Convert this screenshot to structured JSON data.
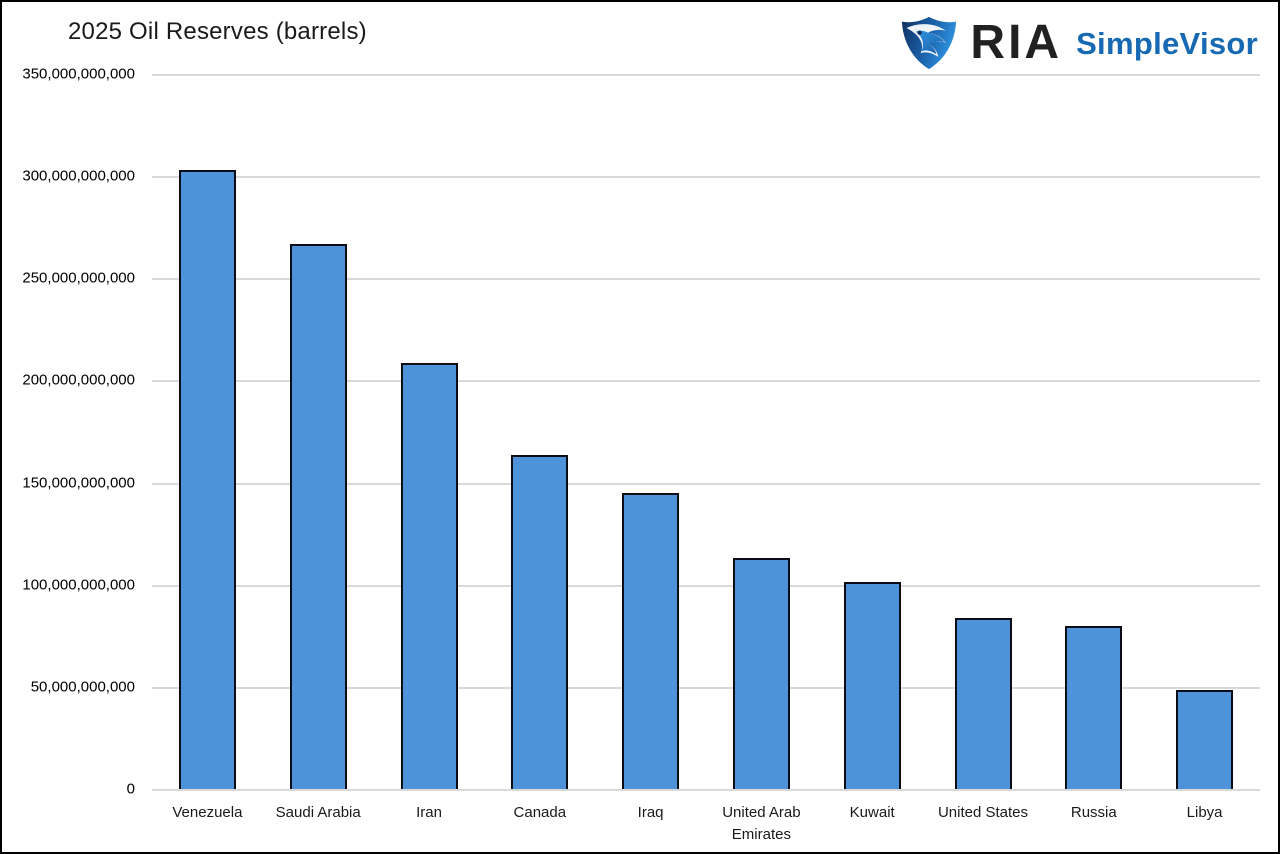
{
  "header": {
    "title": "2025 Oil Reserves (barrels)",
    "logo": {
      "icon": "eagle-shield-icon",
      "ria_text": "RIA",
      "product_text": "SimpleVisor",
      "ria_color": "#212121",
      "product_color": "#1769b3"
    }
  },
  "chart_data": {
    "type": "bar",
    "title": "2025 Oil Reserves (barrels)",
    "categories": [
      "Venezuela",
      "Saudi Arabia",
      "Iran",
      "Canada",
      "Iraq",
      "United Arab Emirates",
      "Kuwait",
      "United States",
      "Russia",
      "Libya"
    ],
    "values": [
      303000000000,
      267000000000,
      208600000000,
      163600000000,
      145000000000,
      113000000000,
      101500000000,
      83800000000,
      80000000000,
      48400000000
    ],
    "xlabel": "",
    "ylabel": "",
    "ylim": [
      0,
      350000000000
    ],
    "ytick_step": 50000000000,
    "grid": true,
    "legend": false,
    "legend_position": "none",
    "bar_fill": "#4e93d9",
    "bar_border": "#0b0d16",
    "gridline_color": "#d9d9d9"
  }
}
